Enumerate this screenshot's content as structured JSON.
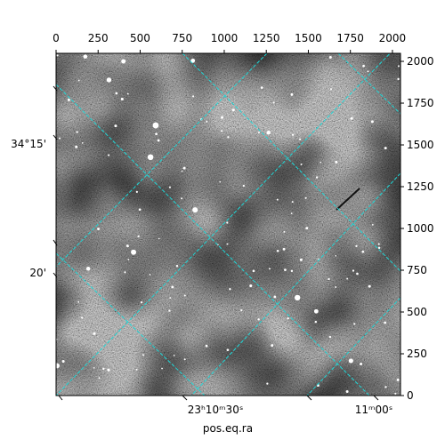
{
  "chart_data": {
    "type": "image",
    "x_label": "pos.eq.ra",
    "xlim": [
      0,
      2048
    ],
    "ylim": [
      0,
      2048
    ],
    "xticks": [
      0,
      250,
      500,
      750,
      1000,
      1250,
      1500,
      1750,
      2000
    ],
    "yticks": [
      0,
      250,
      500,
      750,
      1000,
      1250,
      1500,
      1750,
      2000
    ],
    "ra_tick_labels": [
      "23ʰ10ᵐ30ˢ",
      "11ᵐ00ˢ"
    ],
    "dec_tick_labels": [
      "34°15'",
      "20'"
    ],
    "grid": true,
    "grid_color": "#1fd8d8"
  }
}
